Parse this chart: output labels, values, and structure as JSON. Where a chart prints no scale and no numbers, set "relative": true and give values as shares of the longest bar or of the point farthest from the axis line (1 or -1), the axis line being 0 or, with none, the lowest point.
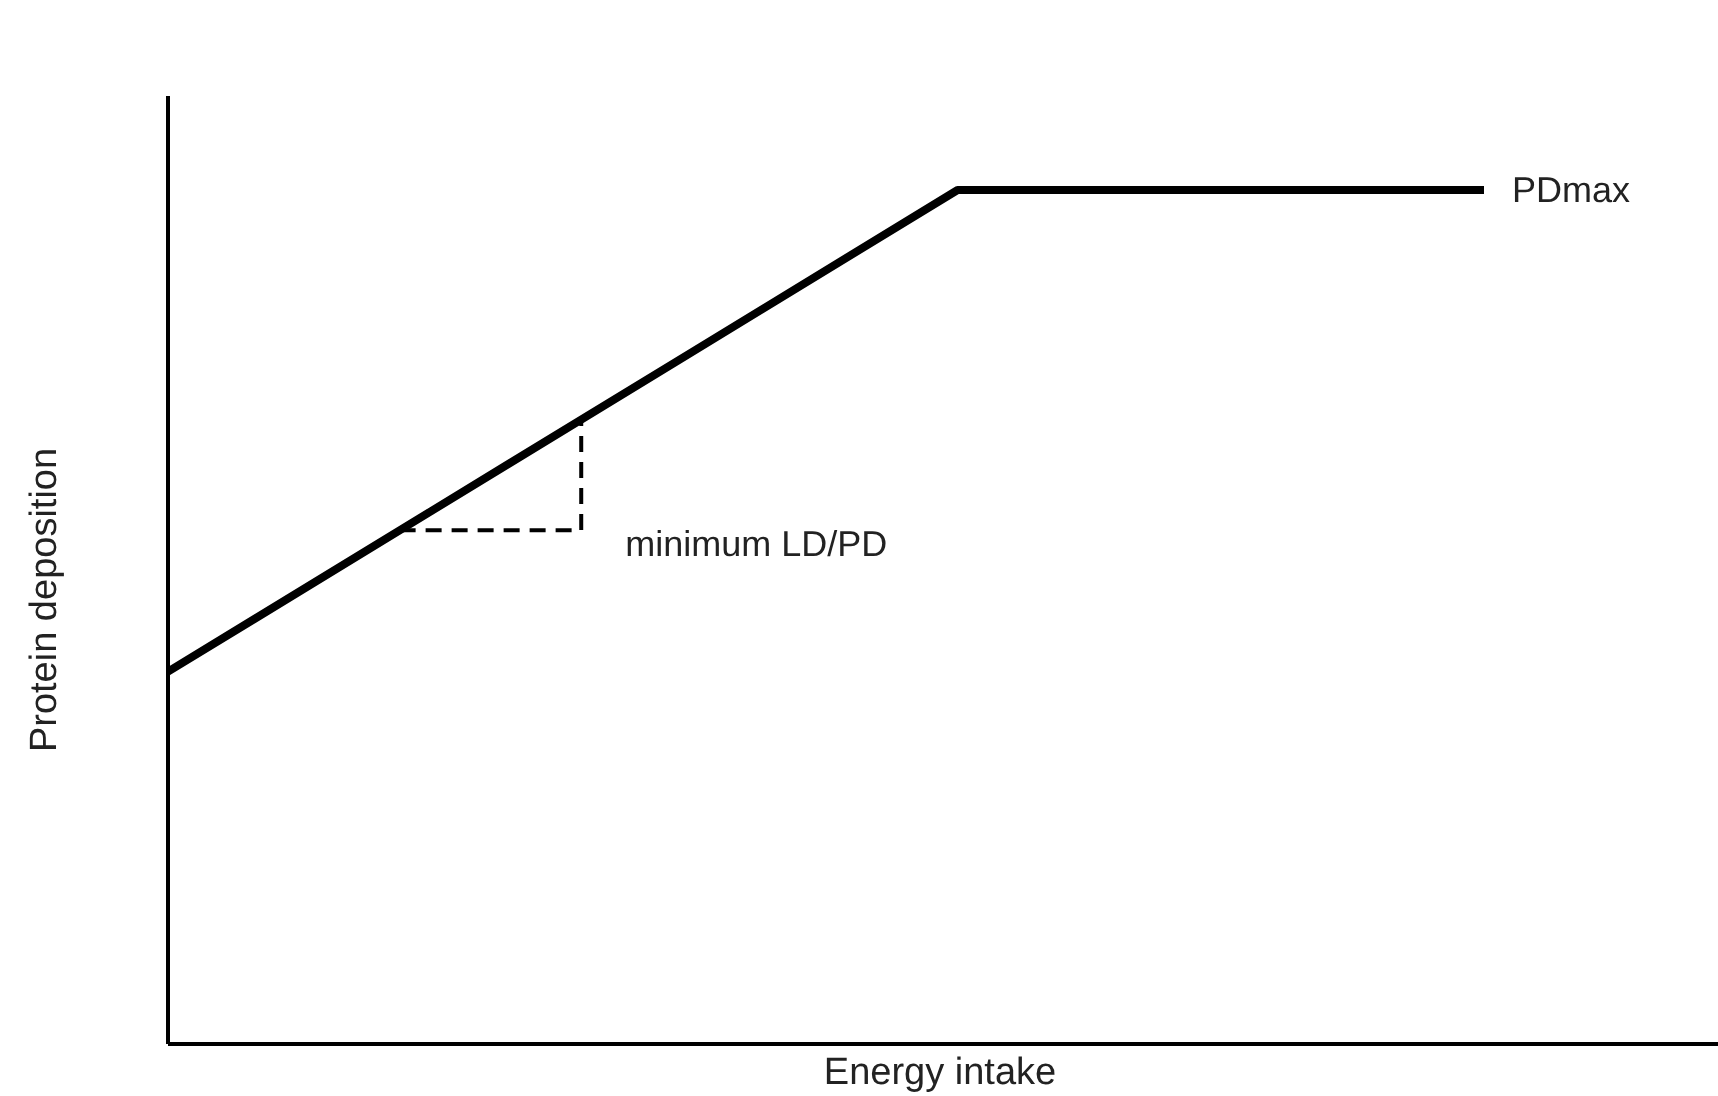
{
  "chart_data": {
    "type": "line",
    "relative": true,
    "xlabel": "Energy intake",
    "ylabel": "Protein deposition",
    "categories": [
      null,
      null,
      null,
      null,
      null,
      null
    ],
    "series": [
      {
        "name": "PDmax",
        "color": "#000000",
        "values": [
          0.436,
          0.624,
          0.812,
          1,
          1,
          1
        ]
      }
    ],
    "annotations": [
      "minimum LD/PD"
    ],
    "marker": "none",
    "line_style": "solid",
    "grid": false,
    "legend": false
  }
}
